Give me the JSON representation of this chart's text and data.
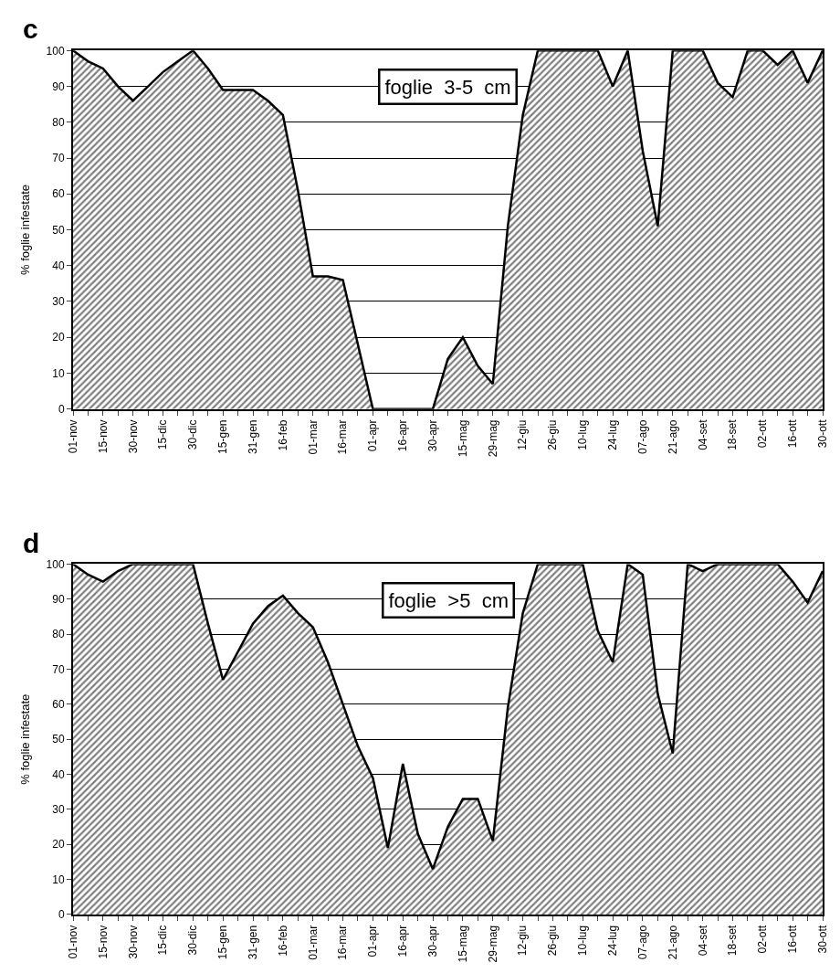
{
  "chart_data": [
    {
      "type": "area",
      "title": "c",
      "ylabel": "% foglie infestate",
      "annotations": [
        "foglie  3-5  cm"
      ],
      "color": "#000000",
      "grid": "y",
      "ylim": [
        0,
        100
      ],
      "yticks": [
        0,
        10,
        20,
        30,
        40,
        50,
        60,
        70,
        80,
        90,
        100
      ],
      "categories": [
        "01-nov",
        null,
        "15-nov",
        null,
        "30-nov",
        null,
        "15-dic",
        null,
        "30-dic",
        null,
        "15-gen",
        null,
        "31-gen",
        null,
        "16-feb",
        null,
        "01-mar",
        null,
        "16-mar",
        null,
        "01-apr",
        null,
        "16-apr",
        null,
        "30-apr",
        null,
        "15-mag",
        null,
        "29-mag",
        null,
        "12-giu",
        null,
        "26-giu",
        null,
        "10-lug",
        null,
        "24-lug",
        null,
        "07-ago",
        null,
        "21-ago",
        null,
        "04-set",
        null,
        "18-set",
        null,
        "02-ott",
        null,
        "16-ott",
        null,
        "30-ott"
      ],
      "values": [
        100,
        97,
        95,
        90,
        86,
        90,
        94,
        97,
        100,
        95,
        89,
        89,
        89,
        86,
        82,
        61,
        37,
        37,
        36,
        18,
        0,
        0,
        0,
        0,
        0,
        14,
        20,
        12,
        7,
        51,
        82,
        100,
        100,
        100,
        100,
        100,
        90,
        100,
        72,
        51,
        100,
        100,
        100,
        91,
        87,
        100,
        100,
        96,
        100,
        91,
        100
      ]
    },
    {
      "type": "area",
      "title": "d",
      "ylabel": "% foglie infestate",
      "annotations": [
        "foglie  >5  cm"
      ],
      "color": "#000000",
      "grid": "y",
      "ylim": [
        0,
        100
      ],
      "yticks": [
        0,
        10,
        20,
        30,
        40,
        50,
        60,
        70,
        80,
        90,
        100
      ],
      "categories": [
        "01-nov",
        null,
        "15-nov",
        null,
        "30-nov",
        null,
        "15-dic",
        null,
        "30-dic",
        null,
        "15-gen",
        null,
        "31-gen",
        null,
        "16-feb",
        null,
        "01-mar",
        null,
        "16-mar",
        null,
        "01-apr",
        null,
        "16-apr",
        null,
        "30-apr",
        null,
        "15-mag",
        null,
        "29-mag",
        null,
        "12-giu",
        null,
        "26-giu",
        null,
        "10-lug",
        null,
        "24-lug",
        null,
        "07-ago",
        null,
        "21-ago",
        null,
        "04-set",
        null,
        "18-set",
        null,
        "02-ott",
        null,
        "16-ott",
        null,
        "30-ott"
      ],
      "values": [
        100,
        97,
        95,
        98,
        100,
        100,
        100,
        100,
        100,
        83,
        67,
        75,
        83,
        88,
        91,
        86,
        82,
        72,
        60,
        48,
        39,
        19,
        43,
        23,
        13,
        25,
        33,
        33,
        21,
        59,
        86,
        100,
        100,
        100,
        100,
        81,
        72,
        100,
        97,
        63,
        46,
        100,
        98,
        100,
        100,
        100,
        100,
        100,
        95,
        89,
        98
      ]
    }
  ]
}
